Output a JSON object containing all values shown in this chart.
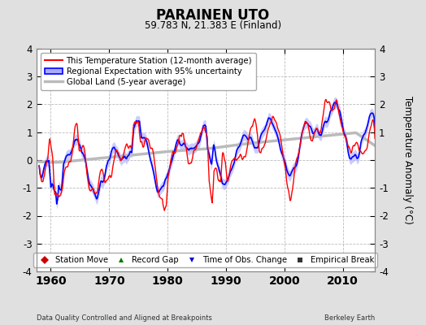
{
  "title": "PARAINEN UTO",
  "subtitle": "59.783 N, 21.383 E (Finland)",
  "ylabel": "Temperature Anomaly (°C)",
  "xlabel_bottom": "Data Quality Controlled and Aligned at Breakpoints",
  "xlabel_right": "Berkeley Earth",
  "ylim": [
    -4,
    4
  ],
  "xlim": [
    1957.5,
    2015.5
  ],
  "xticks": [
    1960,
    1970,
    1980,
    1990,
    2000,
    2010
  ],
  "yticks": [
    -4,
    -3,
    -2,
    -1,
    0,
    1,
    2,
    3,
    4
  ],
  "background_color": "#e0e0e0",
  "plot_bg_color": "#ffffff",
  "grid_color": "#bbbbbb",
  "station_color": "#ff0000",
  "regional_color": "#0000ff",
  "regional_band_color": "#aaaaff",
  "global_color": "#bbbbbb",
  "legend_entries": [
    {
      "label": "This Temperature Station (12-month average)",
      "color": "#ff0000",
      "lw": 1.5
    },
    {
      "label": "Regional Expectation with 95% uncertainty",
      "color": "#0000ff",
      "lw": 1.5
    },
    {
      "label": "Global Land (5-year average)",
      "color": "#bbbbbb",
      "lw": 2.5
    }
  ],
  "footer_legend": [
    {
      "label": "Station Move",
      "marker": "D",
      "color": "#cc0000"
    },
    {
      "label": "Record Gap",
      "marker": "^",
      "color": "#007700"
    },
    {
      "label": "Time of Obs. Change",
      "marker": "v",
      "color": "#0000cc"
    },
    {
      "label": "Empirical Break",
      "marker": "s",
      "color": "#333333"
    }
  ],
  "seed": 42
}
